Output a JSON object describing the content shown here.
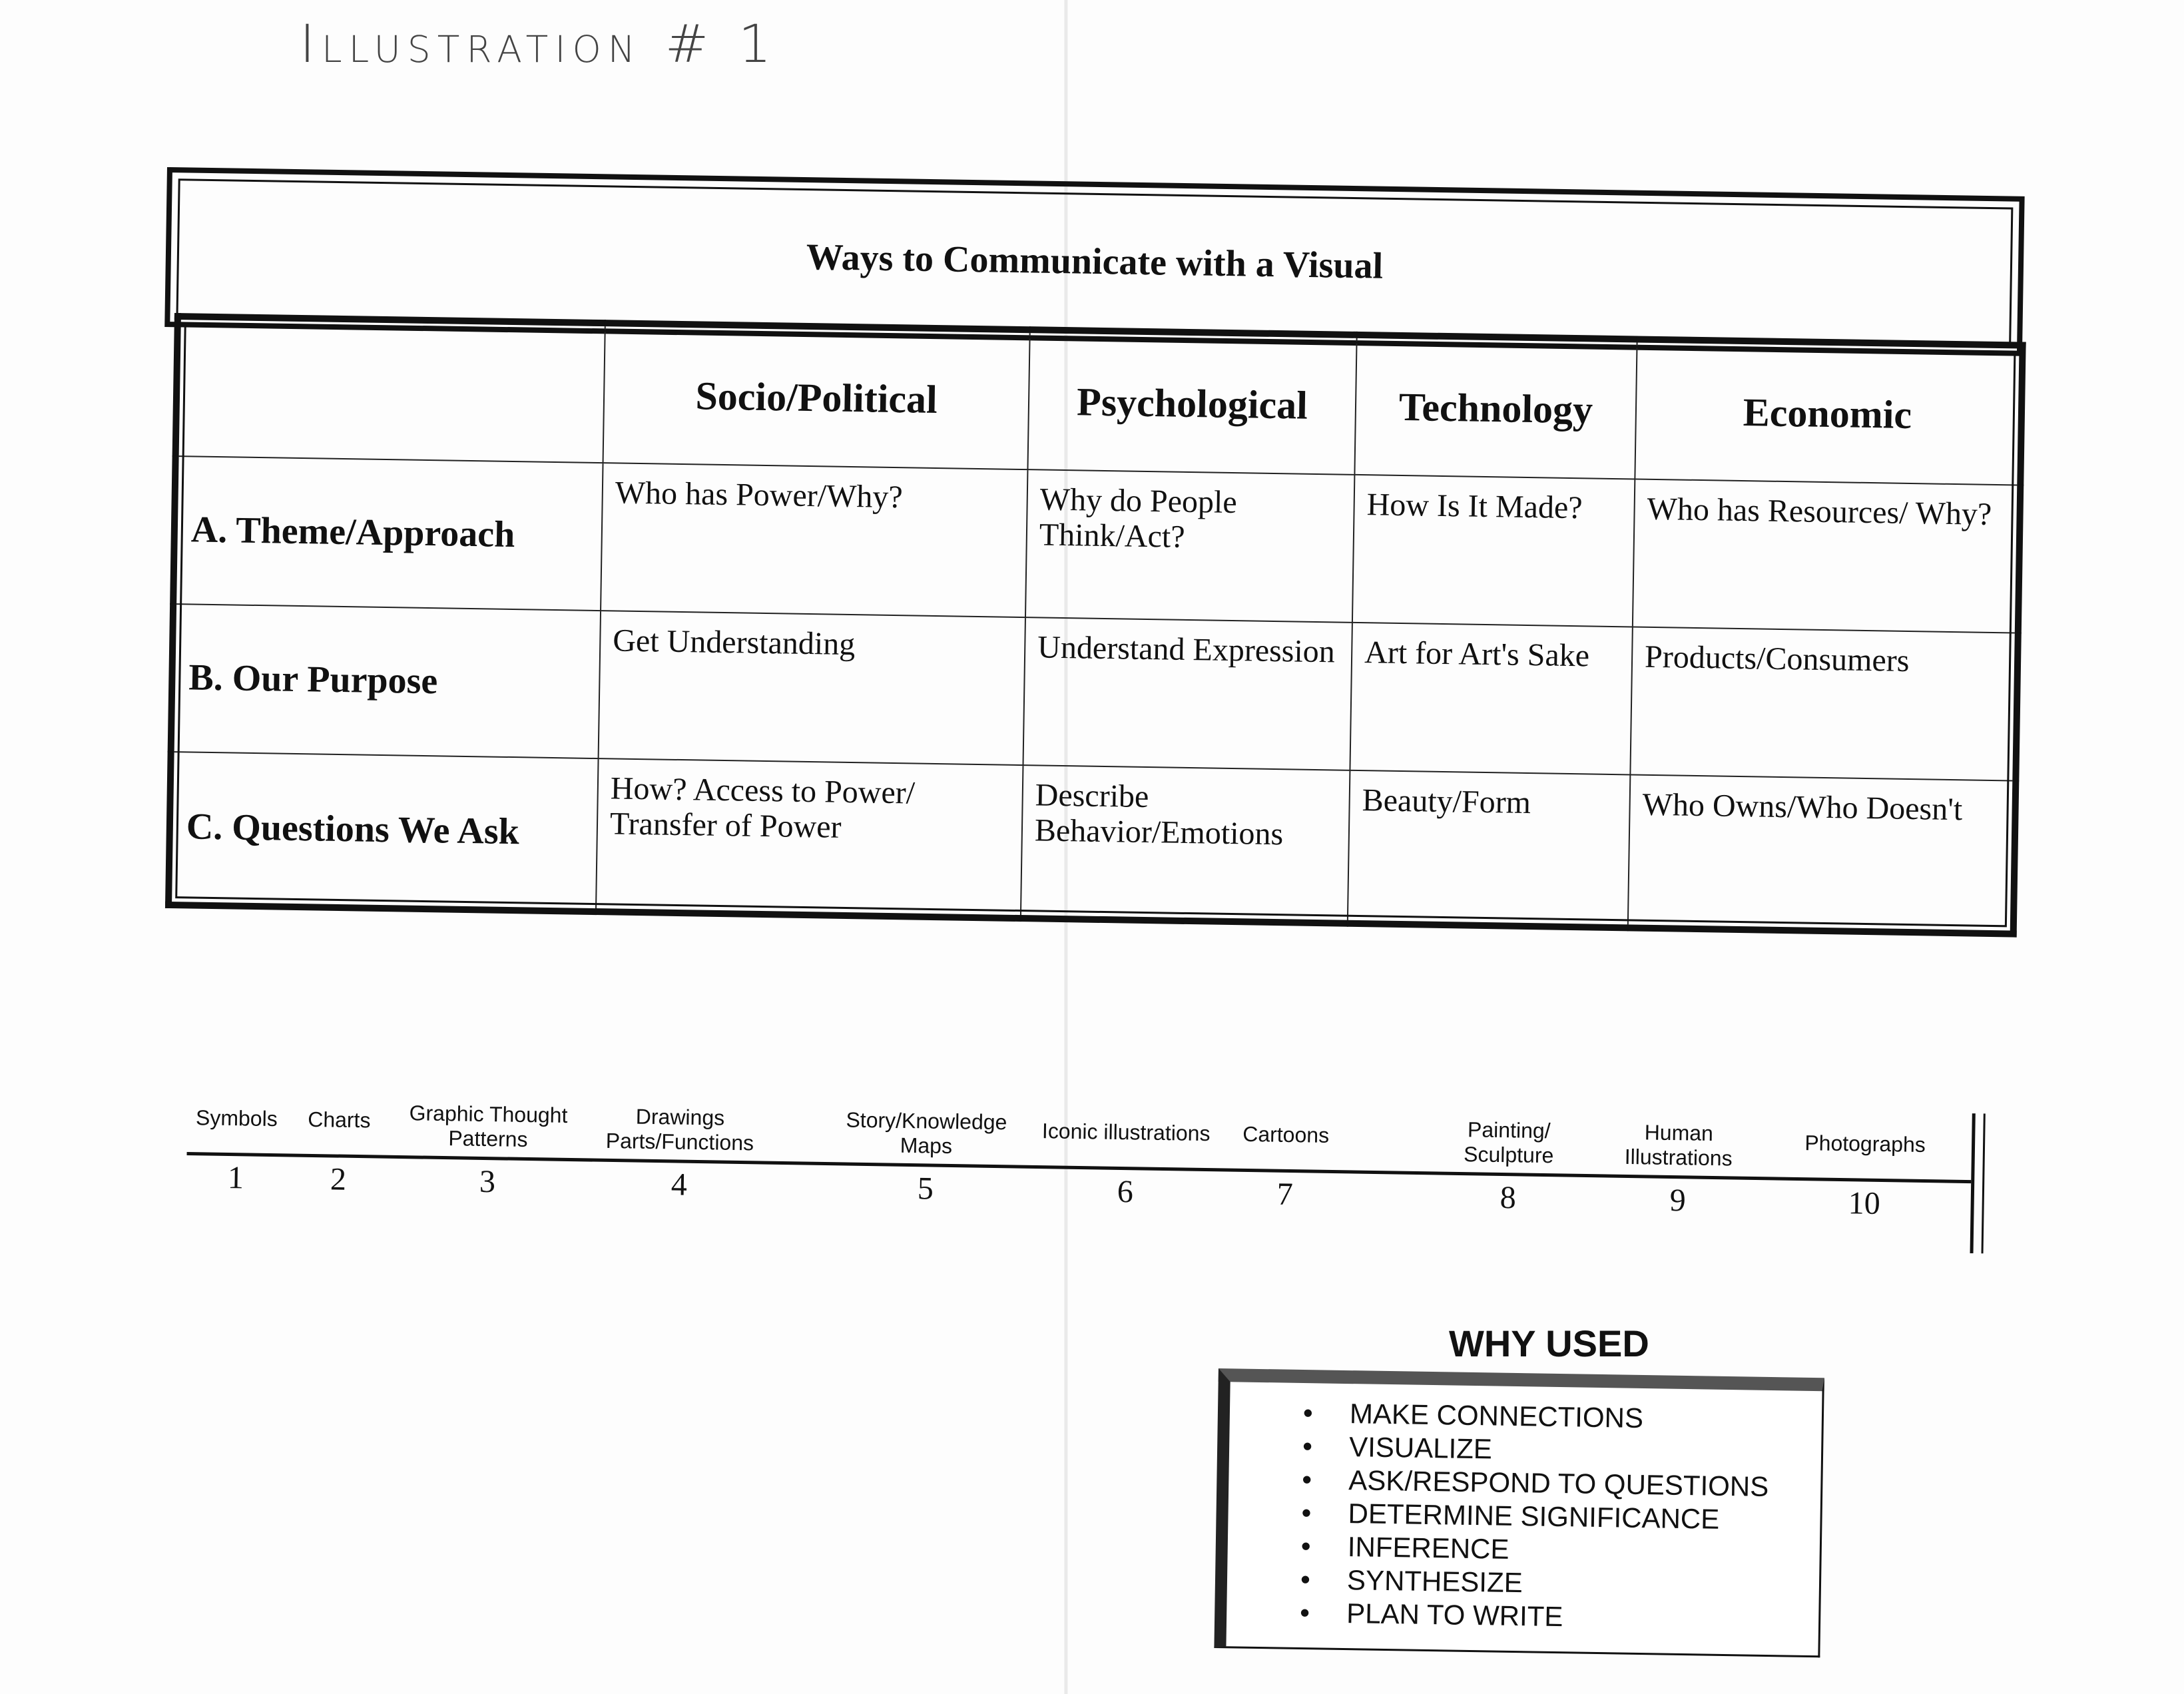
{
  "handwritten_title": "Illustration # 1",
  "title": "Ways to Communicate with a Visual",
  "table": {
    "columns": [
      "",
      "Socio/Political",
      "Psychological",
      "Technology",
      "Economic"
    ],
    "rows": [
      {
        "label": "A. Theme/Approach",
        "cells": [
          "Who has Power/Why?",
          "Why do People Think/Act?",
          "How Is It Made?",
          "Who has Resources/ Why?"
        ]
      },
      {
        "label": "B. Our Purpose",
        "cells": [
          "Get Understanding",
          "Understand Expression",
          "Art for Art's Sake",
          "Products/Consumers"
        ]
      },
      {
        "label": "C. Questions We Ask",
        "cells": [
          "How? Access to Power/ Transfer of Power",
          "Describe Behavior/Emotions",
          "Beauty/Form",
          "Who Owns/Who Doesn't"
        ]
      }
    ]
  },
  "scale": [
    {
      "label": "Symbols",
      "num": "1"
    },
    {
      "label": "Charts",
      "num": "2"
    },
    {
      "label": "Graphic Thought\nPatterns",
      "num": "3"
    },
    {
      "label": "Drawings\nParts/Functions",
      "num": "4"
    },
    {
      "label": "Story/Knowledge\nMaps",
      "num": "5"
    },
    {
      "label": "Iconic illustrations",
      "num": "6"
    },
    {
      "label": "Cartoons",
      "num": "7"
    },
    {
      "label": "Painting/\nSculpture",
      "num": "8"
    },
    {
      "label": "Human\nIllustrations",
      "num": "9"
    },
    {
      "label": "Photographs",
      "num": "10"
    }
  ],
  "why_used": {
    "title": "WHY USED",
    "items": [
      "MAKE CONNECTIONS",
      "VISUALIZE",
      "ASK/RESPOND TO QUESTIONS",
      "DETERMINE SIGNIFICANCE",
      "INFERENCE",
      "SYNTHESIZE",
      "PLAN TO WRITE"
    ]
  }
}
